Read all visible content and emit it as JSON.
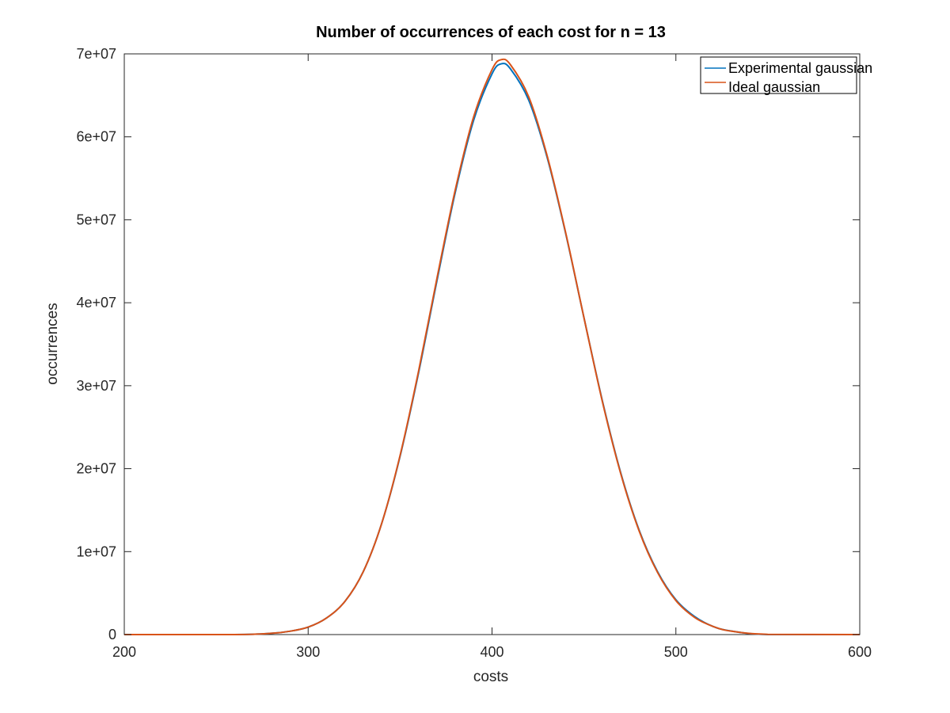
{
  "chart_data": {
    "type": "line",
    "title": "Number of occurrences of each cost for n = 13",
    "xlabel": "costs",
    "ylabel": "occurrences",
    "xlim": [
      200,
      600
    ],
    "ylim": [
      0,
      70000000
    ],
    "x_ticks": [
      200,
      300,
      400,
      500,
      600
    ],
    "x_tick_labels": [
      "200",
      "300",
      "400",
      "500",
      "600"
    ],
    "y_ticks": [
      0,
      10000000,
      20000000,
      30000000,
      40000000,
      50000000,
      60000000,
      70000000
    ],
    "y_tick_labels": [
      "0",
      "1e+07",
      "2e+07",
      "3e+07",
      "4e+07",
      "5e+07",
      "6e+07",
      "7e+07"
    ],
    "grid": false,
    "legend_position": "top-right",
    "x": [
      200,
      260,
      280,
      290,
      300,
      310,
      320,
      330,
      340,
      350,
      360,
      370,
      380,
      390,
      400,
      405,
      410,
      420,
      430,
      440,
      450,
      460,
      470,
      480,
      490,
      500,
      510,
      520,
      530,
      550,
      600
    ],
    "series": [
      {
        "name": "Experimental gaussian",
        "color": "#0072BD",
        "values": [
          0,
          0,
          150000,
          400000,
          900000,
          2000000,
          4000000,
          7600000,
          13400000,
          21500000,
          31500000,
          42600000,
          53300000,
          62000000,
          67600000,
          68800000,
          68200000,
          64400000,
          57500000,
          48400000,
          38200000,
          28200000,
          19500000,
          12600000,
          7600000,
          4200000,
          2200000,
          1000000,
          430000,
          0,
          0
        ]
      },
      {
        "name": "Ideal gaussian",
        "color": "#D95319",
        "values": [
          0,
          0,
          150000,
          400000,
          900000,
          2000000,
          4000000,
          7600000,
          13400000,
          21600000,
          31700000,
          42900000,
          53600000,
          62400000,
          68100000,
          69300000,
          68700000,
          64800000,
          57700000,
          48500000,
          38200000,
          28100000,
          19400000,
          12500000,
          7500000,
          4100000,
          2100000,
          1000000,
          420000,
          30000,
          0
        ]
      }
    ]
  }
}
